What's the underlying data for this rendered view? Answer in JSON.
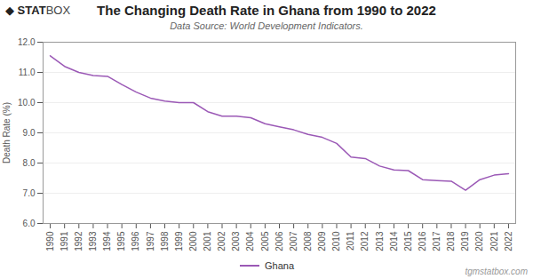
{
  "chart_data": {
    "type": "line",
    "title": "The Changing Death Rate in Ghana from 1990 to 2022",
    "subtitle": "Data Source: World Development Indicators.",
    "ylabel": "Death Rate (%)",
    "annotations": [
      "◆ STAT",
      "BOX",
      "tgmstatbox.com"
    ],
    "x": [
      1990,
      1991,
      1992,
      1993,
      1994,
      1995,
      1996,
      1997,
      1998,
      1999,
      2000,
      2001,
      2002,
      2003,
      2004,
      2005,
      2006,
      2007,
      2008,
      2009,
      2010,
      2011,
      2012,
      2013,
      2014,
      2015,
      2016,
      2017,
      2018,
      2019,
      2020,
      2021,
      2022
    ],
    "series": [
      {
        "name": "Ghana",
        "color": "#9b59b6",
        "values": [
          11.55,
          11.2,
          11.0,
          10.9,
          10.87,
          10.6,
          10.35,
          10.15,
          10.05,
          10.0,
          10.0,
          9.7,
          9.55,
          9.55,
          9.5,
          9.3,
          9.2,
          9.1,
          8.95,
          8.85,
          8.65,
          8.2,
          8.15,
          7.9,
          7.77,
          7.75,
          7.45,
          7.42,
          7.4,
          7.1,
          7.45,
          7.6,
          7.65
        ]
      }
    ],
    "xlim": [
      1989.5,
      2022.5
    ],
    "xticks": [
      1990,
      1991,
      1992,
      1993,
      1994,
      1995,
      1996,
      1997,
      1998,
      1999,
      2000,
      2001,
      2002,
      2003,
      2004,
      2005,
      2006,
      2007,
      2008,
      2009,
      2010,
      2011,
      2012,
      2013,
      2014,
      2015,
      2016,
      2017,
      2018,
      2019,
      2020,
      2021,
      2022
    ],
    "ylim": [
      6,
      12
    ],
    "yticks": [
      6,
      7,
      8,
      9,
      10,
      11,
      12
    ],
    "grid": true,
    "legend": "bottom"
  }
}
